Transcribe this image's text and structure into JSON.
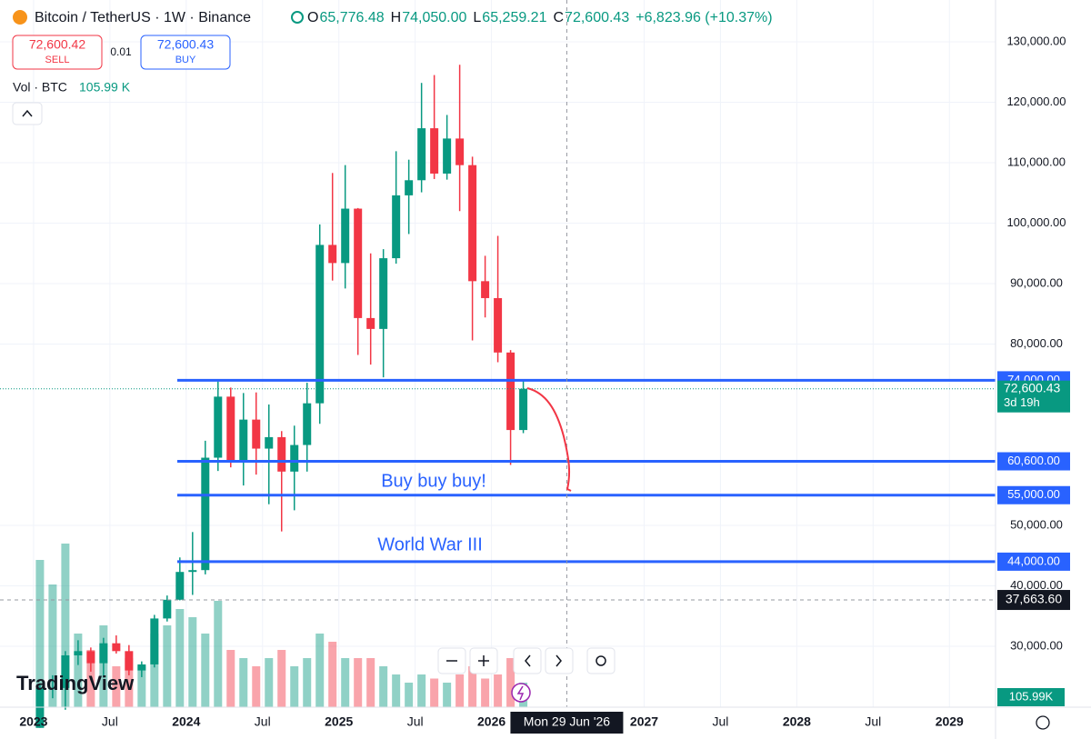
{
  "chart_data": {
    "type": "candlestick",
    "title": "Bitcoin / TetherUS · 1W · Binance",
    "ohlc_header": {
      "o_label": "O",
      "open": "65,776.48",
      "h_label": "H",
      "high": "74,050.00",
      "l_label": "L",
      "low": "65,259.21",
      "c_label": "C",
      "close": "72,600.43",
      "change": "+6,823.96 (+10.37%)"
    },
    "trade": {
      "sell_price": "72,600.42",
      "sell": "SELL",
      "spread": "0.01",
      "buy_price": "72,600.43",
      "buy": "BUY"
    },
    "volume_header": {
      "label": "Vol · BTC",
      "value": "105.99 K"
    },
    "logo": "TradingView",
    "x": [
      "2023-01",
      "2023-02",
      "2023-03",
      "2023-04",
      "2023-05",
      "2023-06",
      "2023-07",
      "2023-08",
      "2023-09",
      "2023-10",
      "2023-11",
      "2023-12",
      "2024-01",
      "2024-02",
      "2024-03",
      "2024-04",
      "2024-05",
      "2024-06",
      "2024-07",
      "2024-08",
      "2024-09",
      "2024-10",
      "2024-11",
      "2024-12",
      "2025-01",
      "2025-02",
      "2025-03",
      "2025-04",
      "2025-05",
      "2025-06",
      "2025-07",
      "2025-08",
      "2025-09",
      "2025-10",
      "2025-11",
      "2025-12",
      "2026-01",
      "2026-02",
      "2026-03"
    ],
    "open": [
      16500,
      23100,
      23100,
      28500,
      29200,
      27200,
      30500,
      29200,
      26000,
      27000,
      34600,
      37700,
      42300,
      42600,
      61200,
      71300,
      60700,
      67500,
      62700,
      64600,
      58900,
      63300,
      70200,
      96400,
      93400,
      102400,
      84300,
      82500,
      94200,
      104600,
      107100,
      115700,
      108200,
      114000,
      109600,
      90400,
      87600,
      78600,
      65776.48
    ],
    "high": [
      23900,
      25200,
      29200,
      31000,
      29800,
      31400,
      31800,
      30200,
      27500,
      35200,
      38400,
      44700,
      48900,
      64000,
      73800,
      72800,
      71900,
      72000,
      70000,
      65600,
      66500,
      73600,
      99800,
      108300,
      109600,
      102500,
      95000,
      95700,
      111900,
      110500,
      123200,
      124500,
      117900,
      126200,
      111000,
      94600,
      97900,
      79000,
      74050
    ],
    "low": [
      16500,
      21400,
      19500,
      26900,
      25800,
      24800,
      28800,
      25200,
      24900,
      26500,
      34100,
      37600,
      38500,
      41900,
      59000,
      59600,
      56600,
      58400,
      53500,
      49000,
      52500,
      58900,
      66800,
      90500,
      89200,
      78200,
      76600,
      74500,
      93300,
      98200,
      105100,
      107300,
      107200,
      102000,
      80600,
      84400,
      77000,
      60000,
      65259.21
    ],
    "close": [
      23100,
      23100,
      28500,
      29200,
      27200,
      30500,
      29200,
      26000,
      27000,
      34600,
      37700,
      42300,
      42600,
      61200,
      71300,
      60700,
      67500,
      62700,
      64600,
      58900,
      63300,
      70200,
      96400,
      93400,
      102400,
      84300,
      82500,
      94200,
      104600,
      107100,
      115700,
      108200,
      114000,
      109600,
      90400,
      87600,
      78600,
      65776.48,
      72600.43
    ],
    "volume": [
      1800,
      1500,
      2000,
      900,
      700,
      1000,
      500,
      600,
      500,
      900,
      1000,
      1200,
      1100,
      900,
      1300,
      700,
      600,
      500,
      600,
      700,
      500,
      600,
      900,
      800,
      600,
      600,
      600,
      500,
      400,
      300,
      400,
      350,
      300,
      400,
      500,
      350,
      400,
      600,
      300
    ],
    "up_color": "#089981",
    "down_color": "#f23645",
    "ylim": [
      19925,
      136917
    ],
    "yticks": [
      {
        "value": 30000,
        "label": "30,000.00"
      },
      {
        "value": 40000,
        "label": "40,000.00"
      },
      {
        "value": 50000,
        "label": "50,000.00"
      },
      {
        "value": 80000,
        "label": "80,000.00"
      },
      {
        "value": 90000,
        "label": "90,000.00"
      },
      {
        "value": 100000,
        "label": "100,000.00"
      },
      {
        "value": 110000,
        "label": "110,000.00"
      },
      {
        "value": 120000,
        "label": "120,000.00"
      },
      {
        "value": 130000,
        "label": "130,000.00"
      }
    ],
    "xlim": [
      "2022-10-12",
      "2029-04-20"
    ],
    "xticks": [
      {
        "value": "2023-01",
        "label": "2023"
      },
      {
        "value": "2023-07",
        "label": "Jul"
      },
      {
        "value": "2024-01",
        "label": "2024"
      },
      {
        "value": "2024-07",
        "label": "Jul"
      },
      {
        "value": "2025-01",
        "label": "2025"
      },
      {
        "value": "2025-07",
        "label": "Jul"
      },
      {
        "value": "2026-01",
        "label": "2026"
      },
      {
        "value": "2027-01",
        "label": "2027"
      },
      {
        "value": "2027-07",
        "label": "Jul"
      },
      {
        "value": "2028-01",
        "label": "2028"
      },
      {
        "value": "2028-07",
        "label": "Jul"
      },
      {
        "value": "2029-01",
        "label": "2029"
      }
    ],
    "grid": true,
    "levels": [
      {
        "value": 74000,
        "label": "74,000.00"
      },
      {
        "value": 60600,
        "label": "60,600.00"
      },
      {
        "value": 55000,
        "label": "55,000.00"
      },
      {
        "value": 44000,
        "label": "44,000.00"
      }
    ],
    "level_color": "#2962ff",
    "last_price": {
      "value": 72600.43,
      "label": "72,600.43",
      "countdown": "3d 19h"
    },
    "crosshair": {
      "value": 37663.6,
      "label": "37,663.60",
      "x": "2026-06-29",
      "x_label": "Mon 29 Jun '26"
    },
    "volume_last": "105.99K",
    "annotations": [
      "Buy buy buy!",
      "World War III"
    ]
  }
}
